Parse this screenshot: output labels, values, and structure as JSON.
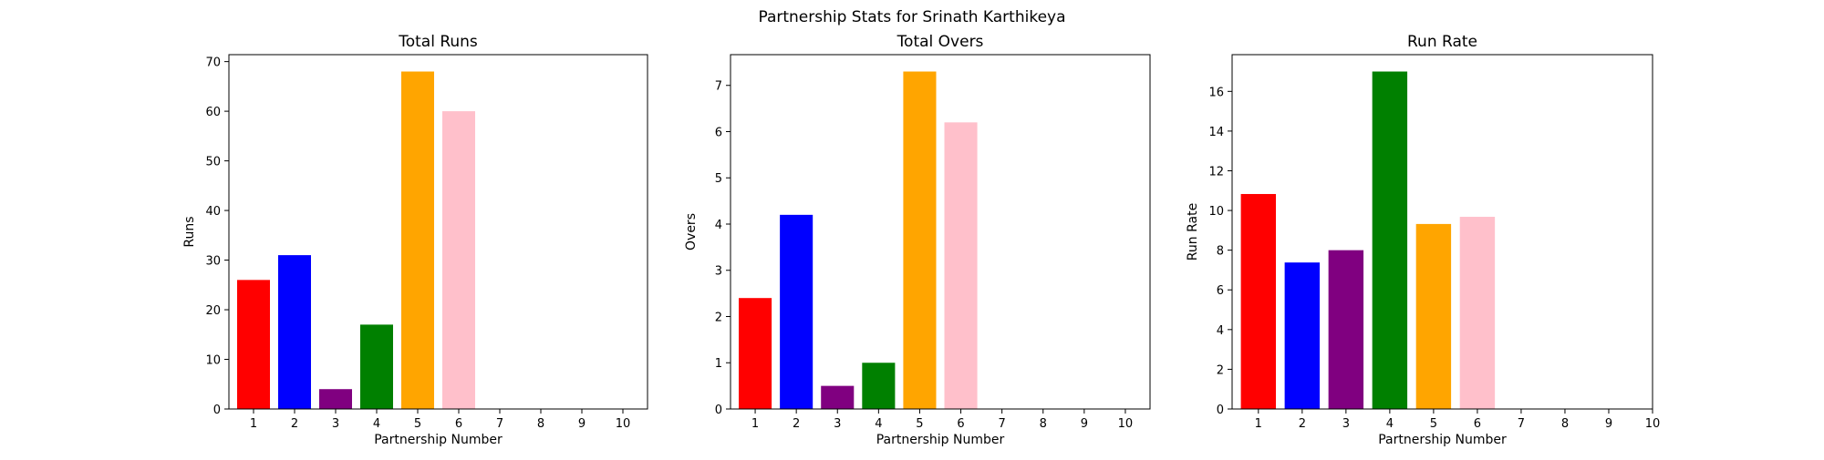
{
  "figure": {
    "suptitle": "Partnership Stats for Srinath Karthikeya"
  },
  "chart_data": [
    {
      "type": "bar",
      "title": "Total Runs",
      "xlabel": "Partnership Number",
      "ylabel": "Runs",
      "categories": [
        1,
        2,
        3,
        4,
        5,
        6
      ],
      "values": [
        26,
        31,
        4,
        17,
        68,
        60
      ],
      "colors": [
        "#ff0000",
        "#0000ff",
        "#800080",
        "#008000",
        "#ffa500",
        "#ffc0cb"
      ],
      "xticks": [
        1,
        2,
        3,
        4,
        5,
        6,
        7,
        8,
        9,
        10
      ],
      "xlim": [
        0.4,
        10.6
      ],
      "ylim": [
        0,
        71.4
      ],
      "yticks": [
        0,
        10,
        20,
        30,
        40,
        50,
        60,
        70
      ],
      "grid": false
    },
    {
      "type": "bar",
      "title": "Total Overs",
      "xlabel": "Partnership Number",
      "ylabel": "Overs",
      "categories": [
        1,
        2,
        3,
        4,
        5,
        6
      ],
      "values": [
        2.4,
        4.2,
        0.5,
        1.0,
        7.3,
        6.2
      ],
      "colors": [
        "#ff0000",
        "#0000ff",
        "#800080",
        "#008000",
        "#ffa500",
        "#ffc0cb"
      ],
      "xticks": [
        1,
        2,
        3,
        4,
        5,
        6,
        7,
        8,
        9,
        10
      ],
      "xlim": [
        0.4,
        10.6
      ],
      "ylim": [
        0,
        7.665
      ],
      "yticks": [
        0,
        1,
        2,
        3,
        4,
        5,
        6,
        7
      ],
      "grid": false
    },
    {
      "type": "bar",
      "title": "Run Rate",
      "xlabel": "Partnership Number",
      "ylabel": "Run Rate",
      "categories": [
        1,
        2,
        3,
        4,
        5,
        6
      ],
      "values": [
        10.83,
        7.38,
        8.0,
        17.0,
        9.32,
        9.68
      ],
      "colors": [
        "#ff0000",
        "#0000ff",
        "#800080",
        "#008000",
        "#ffa500",
        "#ffc0cb"
      ],
      "xticks": [
        1,
        2,
        3,
        4,
        5,
        6,
        7,
        8,
        9,
        10
      ],
      "xlim": [
        0.4,
        10
      ],
      "ylim": [
        0,
        17.85
      ],
      "yticks": [
        0,
        2,
        4,
        6,
        8,
        10,
        12,
        14,
        16
      ],
      "grid": false
    }
  ]
}
